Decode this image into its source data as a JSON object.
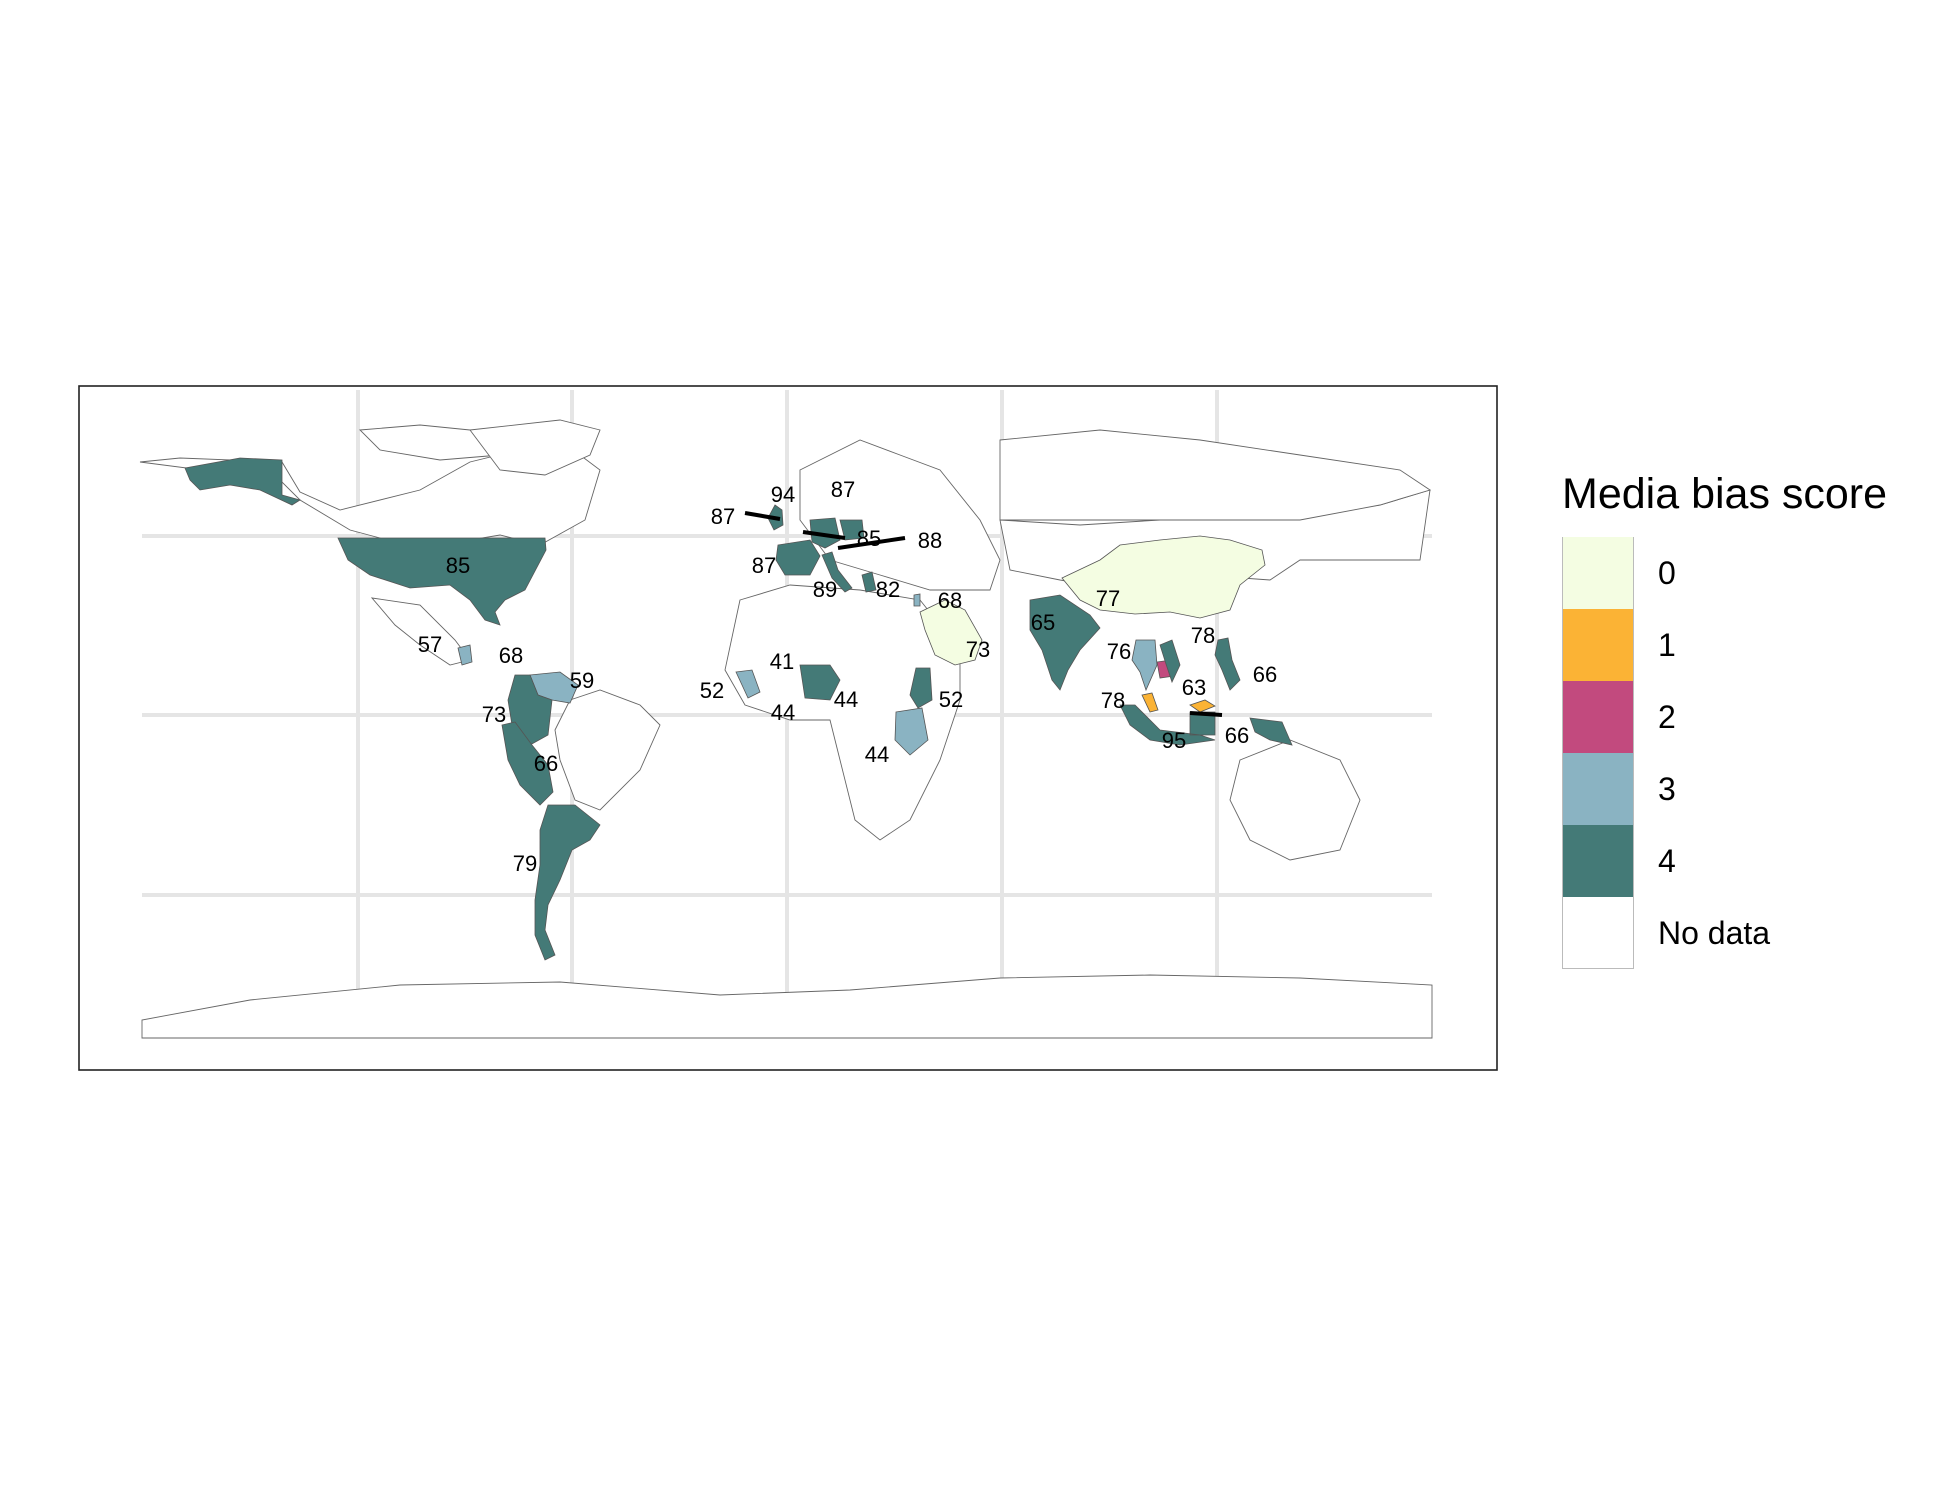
{
  "legend": {
    "title": "Media bias score",
    "items": [
      {
        "label": "0",
        "color": "#f4fde2"
      },
      {
        "label": "1",
        "color": "#fbb335"
      },
      {
        "label": "2",
        "color": "#c24a7e"
      },
      {
        "label": "3",
        "color": "#8ab3c2"
      },
      {
        "label": "4",
        "color": "#447a77"
      },
      {
        "label": "No data",
        "color": "#ffffff"
      }
    ]
  },
  "countries": [
    {
      "name": "United States",
      "score": 4,
      "label": "85"
    },
    {
      "name": "Alaska",
      "score": 4,
      "label": ""
    },
    {
      "name": "Mexico",
      "score": null,
      "label": "57"
    },
    {
      "name": "Guatemala",
      "score": 3,
      "label": "68"
    },
    {
      "name": "Colombia",
      "score": 4,
      "label": "73"
    },
    {
      "name": "Venezuela",
      "score": 3,
      "label": "59"
    },
    {
      "name": "Peru",
      "score": 4,
      "label": "66"
    },
    {
      "name": "Argentina",
      "score": 4,
      "label": "79"
    },
    {
      "name": "United Kingdom",
      "score": 4,
      "label": "87"
    },
    {
      "name": "Norway",
      "score": null,
      "label": "94"
    },
    {
      "name": "Sweden",
      "score": null,
      "label": "87"
    },
    {
      "name": "France",
      "score": 4,
      "label": "87"
    },
    {
      "name": "Germany",
      "score": 4,
      "label": "85"
    },
    {
      "name": "Poland",
      "score": 4,
      "label": "88"
    },
    {
      "name": "Italy",
      "score": 4,
      "label": "89"
    },
    {
      "name": "Greece",
      "score": 4,
      "label": "82"
    },
    {
      "name": "Lebanon",
      "score": 3,
      "label": "68"
    },
    {
      "name": "Saudi Arabia",
      "score": 0,
      "label": "73"
    },
    {
      "name": "Mali",
      "score": null,
      "label": "41"
    },
    {
      "name": "Sierra Leone",
      "score": 3,
      "label": "52"
    },
    {
      "name": "Ghana",
      "score": null,
      "label": "44"
    },
    {
      "name": "Nigeria",
      "score": 4,
      "label": "44"
    },
    {
      "name": "Kenya",
      "score": 4,
      "label": "52"
    },
    {
      "name": "Tanzania",
      "score": 3,
      "label": "44"
    },
    {
      "name": "India",
      "score": 4,
      "label": "65"
    },
    {
      "name": "China",
      "score": 0,
      "label": "77"
    },
    {
      "name": "Thailand",
      "score": 3,
      "label": "76"
    },
    {
      "name": "Cambodia",
      "score": 2,
      "label": "63"
    },
    {
      "name": "Vietnam",
      "score": 4,
      "label": "78"
    },
    {
      "name": "Philippines",
      "score": 4,
      "label": "66"
    },
    {
      "name": "Malaysia",
      "score": 1,
      "label": "78"
    },
    {
      "name": "Indonesia",
      "score": 4,
      "label": "95"
    },
    {
      "name": "Borneo-Malaysia",
      "score": 1,
      "label": "66"
    }
  ]
}
